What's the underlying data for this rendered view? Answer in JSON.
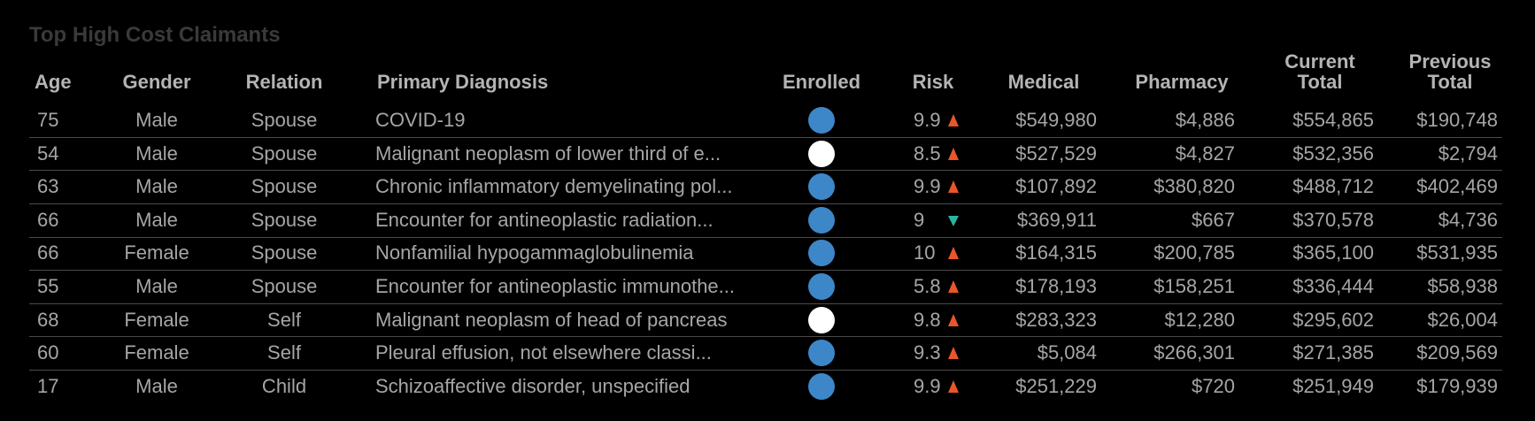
{
  "title": "Top High Cost Claimants",
  "table": {
    "columns": [
      "Age",
      "Gender",
      "Relation",
      "Primary Diagnosis",
      "Enrolled",
      "Risk",
      "Medical",
      "Pharmacy",
      "Current Total",
      "Previous Total"
    ],
    "rows": [
      {
        "cells": [
          "75",
          "Male",
          "Spouse",
          "COVID-19",
          "9.9",
          "$549,980",
          "$4,886",
          "$554,865",
          "$190,748"
        ],
        "enrolled_color": "#3d87c9",
        "risk_trend": "up"
      },
      {
        "cells": [
          "54",
          "Male",
          "Spouse",
          "Malignant neoplasm of lower third of e...",
          "8.5",
          "$527,529",
          "$4,827",
          "$532,356",
          "$2,794"
        ],
        "enrolled_color": "#ffffff",
        "risk_trend": "up"
      },
      {
        "cells": [
          "63",
          "Male",
          "Spouse",
          "Chronic inflammatory demyelinating pol...",
          "9.9",
          "$107,892",
          "$380,820",
          "$488,712",
          "$402,469"
        ],
        "enrolled_color": "#3d87c9",
        "risk_trend": "up"
      },
      {
        "cells": [
          "66",
          "Male",
          "Spouse",
          "Encounter for antineoplastic radiation...",
          "9",
          "$369,911",
          "$667",
          "$370,578",
          "$4,736"
        ],
        "enrolled_color": "#3d87c9",
        "risk_trend": "down"
      },
      {
        "cells": [
          "66",
          "Female",
          "Spouse",
          "Nonfamilial hypogammaglobulinemia",
          "10",
          "$164,315",
          "$200,785",
          "$365,100",
          "$531,935"
        ],
        "enrolled_color": "#3d87c9",
        "risk_trend": "up"
      },
      {
        "cells": [
          "55",
          "Male",
          "Spouse",
          "Encounter for antineoplastic immunothe...",
          "5.8",
          "$178,193",
          "$158,251",
          "$336,444",
          "$58,938"
        ],
        "enrolled_color": "#3d87c9",
        "risk_trend": "up"
      },
      {
        "cells": [
          "68",
          "Female",
          "Self",
          "Malignant neoplasm of head of pancreas",
          "9.8",
          "$283,323",
          "$12,280",
          "$295,602",
          "$26,004"
        ],
        "enrolled_color": "#ffffff",
        "risk_trend": "up"
      },
      {
        "cells": [
          "60",
          "Female",
          "Self",
          "Pleural effusion, not elsewhere classi...",
          "9.3",
          "$5,084",
          "$266,301",
          "$271,385",
          "$209,569"
        ],
        "enrolled_color": "#3d87c9",
        "risk_trend": "up"
      },
      {
        "cells": [
          "17",
          "Male",
          "Child",
          "Schizoaffective disorder, unspecified",
          "9.9",
          "$251,229",
          "$720",
          "$251,949",
          "$179,939"
        ],
        "enrolled_color": "#3d87c9",
        "risk_trend": "up"
      }
    ]
  }
}
